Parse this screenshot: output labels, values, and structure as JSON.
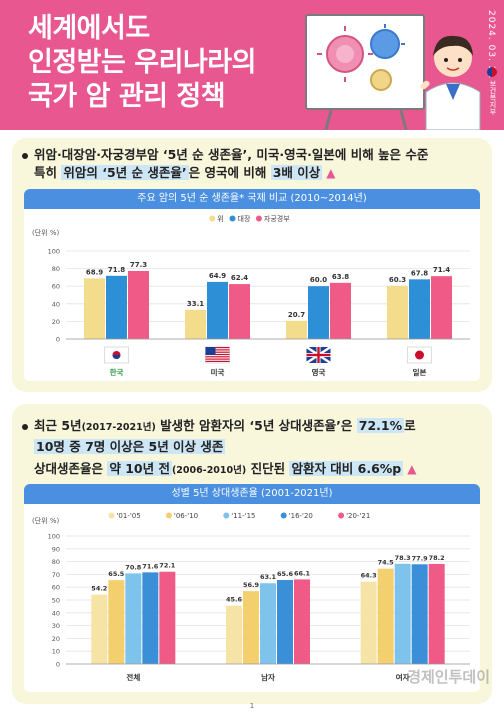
{
  "header": {
    "title_lines": [
      "세계에서도",
      "인정받는 우리나라의",
      "국가 암 관리 정책"
    ],
    "date": "2024. 03. 21",
    "ministry": "보건복지부"
  },
  "section1": {
    "line1_a": "위암·대장암·자궁경부암 ‘5년 순 생존율’, 미국·영국·일본에 비해 높은 수준",
    "line2_a": "특히 ",
    "line2_b": "위암의 ‘5년 순 생존율’",
    "line2_c": "은 영국에 비해 ",
    "line2_d": "3배 이상"
  },
  "section2": {
    "line1_a": "최근 5년",
    "line1_b": "(2017-2021년)",
    "line1_c": " 발생한 암환자의 ‘5년 상대생존율’은 ",
    "line1_d": "72.1%",
    "line1_e": "로",
    "line2_a": "10명 중 7명 이상은 5년 이상 생존",
    "line3_a": "상대생존율은 ",
    "line3_b": "약 10년 전",
    "line3_c": "(2006-2010년)",
    "line3_d": " 진단된 ",
    "line3_e": "암환자 대비 6.6%p"
  },
  "page_number": "1",
  "watermark": "경제인투데이",
  "colors": {
    "brand_pink": "#e8578f",
    "panel_bg": "#f8f7dc",
    "title_blue": "#4a8fe0"
  },
  "chart_data": [
    {
      "type": "bar",
      "title": "주요 암의 5년 순 생존율* 국제 비교 (2010~2014년)",
      "unit_label": "(단위 %)",
      "categories": [
        "한국",
        "미국",
        "영국",
        "일본"
      ],
      "series": [
        {
          "name": "위",
          "color": "#f3dc8c",
          "values": [
            68.9,
            33.1,
            20.7,
            60.3
          ]
        },
        {
          "name": "대장",
          "color": "#2d8fd5",
          "values": [
            71.8,
            64.9,
            60.0,
            67.8
          ]
        },
        {
          "name": "자궁경부",
          "color": "#ef5b86",
          "values": [
            77.3,
            62.4,
            63.8,
            71.4
          ]
        }
      ],
      "ylim": [
        0,
        100
      ],
      "yticks": [
        0,
        20,
        40,
        60,
        80,
        100
      ],
      "grid": true,
      "legend": "top-center"
    },
    {
      "type": "bar",
      "title": "성별 5년 상대생존율 (2001-2021년)",
      "unit_label": "(단위 %)",
      "categories": [
        "전체",
        "남자",
        "여자"
      ],
      "series": [
        {
          "name": "'01-'05",
          "color": "#f6e4a6",
          "values": [
            54.2,
            45.6,
            64.3
          ]
        },
        {
          "name": "'06-'10",
          "color": "#f4cf6e",
          "values": [
            65.5,
            56.9,
            74.5
          ]
        },
        {
          "name": "'11-'15",
          "color": "#7ec3ec",
          "values": [
            70.8,
            63.1,
            78.3
          ]
        },
        {
          "name": "'16-'20",
          "color": "#3b8fd8",
          "values": [
            71.6,
            65.6,
            77.9
          ]
        },
        {
          "name": "'20-'21",
          "color": "#ef5b86",
          "values": [
            72.1,
            66.1,
            78.2
          ]
        }
      ],
      "ylim": [
        0,
        100
      ],
      "yticks": [
        0,
        10,
        20,
        30,
        40,
        50,
        60,
        70,
        80,
        90,
        100
      ],
      "grid": true,
      "legend": "top-center"
    }
  ]
}
